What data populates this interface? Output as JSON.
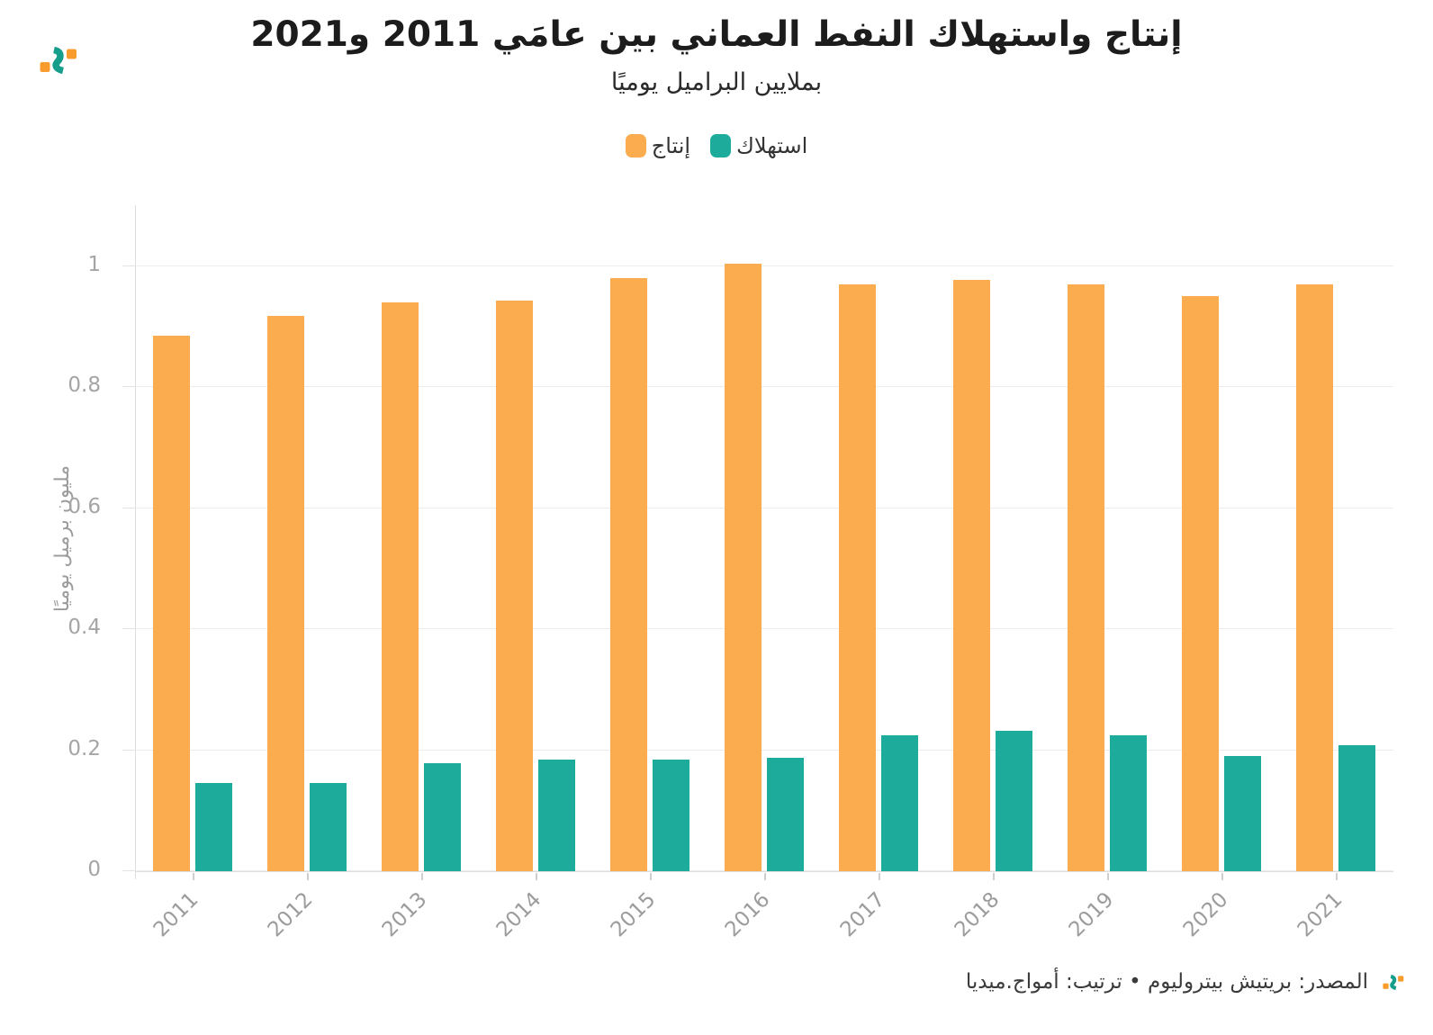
{
  "header": {
    "title": "إنتاج واستهلاك النفط العماني بين عامَي 2011 و2021",
    "subtitle": "بملايين البراميل يوميًا"
  },
  "legend": [
    {
      "key": "production",
      "label": "إنتاج",
      "color": "#FBAC4E"
    },
    {
      "key": "consumption",
      "label": "استهلاك",
      "color": "#1DAC9B"
    }
  ],
  "chart_data": {
    "type": "bar",
    "title": "إنتاج واستهلاك النفط العماني بين عامَي 2011 و2021",
    "subtitle": "بملايين البراميل يوميًا",
    "categories": [
      "2011",
      "2012",
      "2013",
      "2014",
      "2015",
      "2016",
      "2017",
      "2018",
      "2019",
      "2020",
      "2021"
    ],
    "series": [
      {
        "name": "إنتاج",
        "key": "production",
        "color": "#FBAC4E",
        "values": [
          0.885,
          0.918,
          0.941,
          0.943,
          0.981,
          1.004,
          0.97,
          0.978,
          0.971,
          0.951,
          0.971
        ]
      },
      {
        "name": "استهلاك",
        "key": "consumption",
        "color": "#1DAC9B",
        "values": [
          0.146,
          0.146,
          0.178,
          0.185,
          0.184,
          0.187,
          0.224,
          0.232,
          0.224,
          0.191,
          0.209
        ]
      }
    ],
    "ylabel": "مليون برميل يوميًا",
    "xlabel": "",
    "yticks": [
      0,
      0.2,
      0.4,
      0.6,
      0.8,
      1
    ],
    "ytick_labels": [
      "0",
      "0.2",
      "0.4",
      "0.6",
      "0.8",
      "1"
    ],
    "ylim": [
      0,
      1.1
    ],
    "grid": true,
    "legend_position": "top",
    "x_tick_rotation_deg": -45
  },
  "footer": {
    "source": "المصدر: بريتيش بيتروليوم • ترتيب: أمواج.ميديا"
  },
  "colors": {
    "production_orange": "#FBAC4E",
    "consumption_teal": "#1DAC9B",
    "gridline": "#ececec",
    "axis": "#dedede",
    "tick_label": "#a5a5a5"
  },
  "icons": {
    "brand_logo": "amwaj-wave-logo"
  }
}
